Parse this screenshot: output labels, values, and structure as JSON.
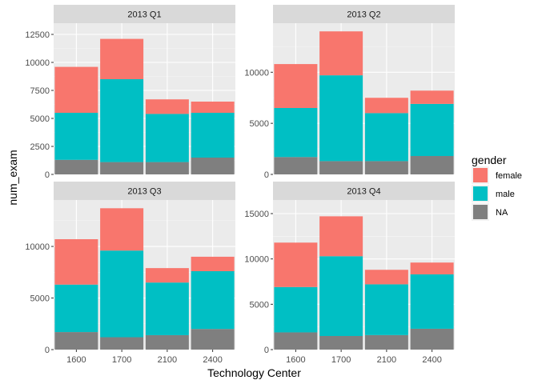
{
  "chart_data": {
    "type": "bar",
    "stacked": true,
    "facet": "panel",
    "xlabel": "Technology Center",
    "ylabel": "num_exam",
    "grid": true,
    "legend": {
      "title": "gender",
      "position": "right",
      "entries": [
        "female",
        "male",
        "NA"
      ]
    },
    "colors": {
      "female": "#F8766D",
      "male": "#00BFC4",
      "NA": "#7F7F7F"
    },
    "categories": [
      "1600",
      "1700",
      "2100",
      "2400"
    ],
    "stack_order_bottom_to_top": [
      "NA",
      "male",
      "female"
    ],
    "panels": [
      {
        "title": "2013 Q1",
        "ylim": [
          0,
          13500
        ],
        "yticks": [
          0,
          2500,
          5000,
          7500,
          10000,
          12500
        ],
        "series": [
          {
            "name": "female",
            "values": [
              4100,
              3600,
              1300,
              1000
            ]
          },
          {
            "name": "male",
            "values": [
              4200,
              7400,
              4300,
              4000
            ]
          },
          {
            "name": "NA",
            "values": [
              1300,
              1100,
              1100,
              1500
            ]
          }
        ]
      },
      {
        "title": "2013 Q2",
        "ylim": [
          0,
          14800
        ],
        "yticks": [
          0,
          5000,
          10000
        ],
        "series": [
          {
            "name": "female",
            "values": [
              4300,
              4300,
              1500,
              1300
            ]
          },
          {
            "name": "male",
            "values": [
              4800,
              8400,
              4700,
              5100
            ]
          },
          {
            "name": "NA",
            "values": [
              1700,
              1300,
              1300,
              1800
            ]
          }
        ]
      },
      {
        "title": "2013 Q3",
        "ylim": [
          0,
          14500
        ],
        "yticks": [
          0,
          5000,
          10000
        ],
        "series": [
          {
            "name": "female",
            "values": [
              4400,
              4100,
              1400,
              1400
            ]
          },
          {
            "name": "male",
            "values": [
              4600,
              8400,
              5100,
              5600
            ]
          },
          {
            "name": "NA",
            "values": [
              1700,
              1200,
              1400,
              2000
            ]
          }
        ]
      },
      {
        "title": "2013 Q4",
        "ylim": [
          0,
          16500
        ],
        "yticks": [
          0,
          5000,
          10000,
          15000
        ],
        "series": [
          {
            "name": "female",
            "values": [
              4900,
              4400,
              1600,
              1300
            ]
          },
          {
            "name": "male",
            "values": [
              5000,
              8800,
              5600,
              6000
            ]
          },
          {
            "name": "NA",
            "values": [
              1900,
              1500,
              1600,
              2300
            ]
          }
        ]
      }
    ]
  }
}
